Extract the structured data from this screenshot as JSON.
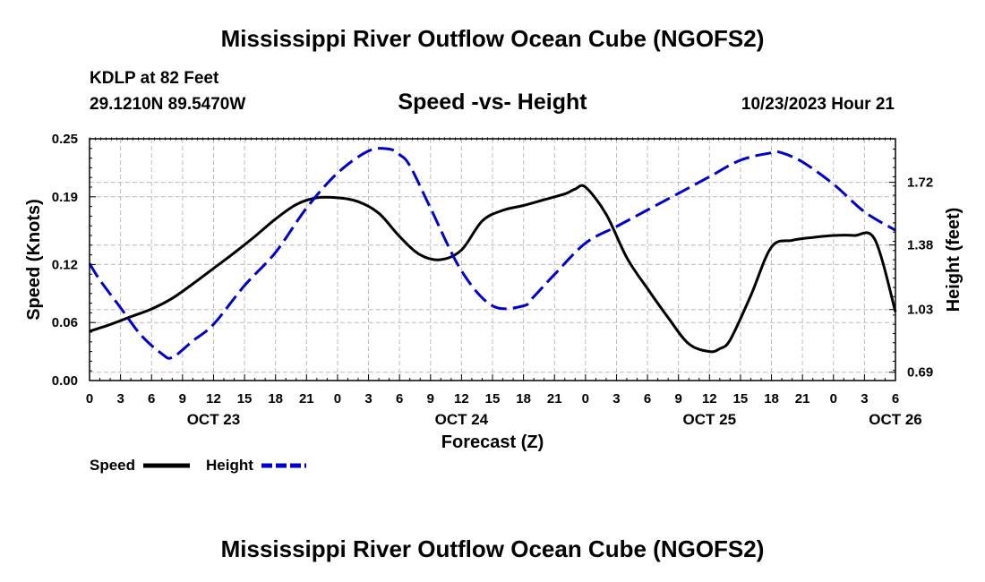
{
  "page": {
    "title_top": "Mississippi River Outflow Ocean Cube (NGOFS2)",
    "title_bottom": "Mississippi River Outflow Ocean Cube (NGOFS2)",
    "station": "KDLP at 82 Feet",
    "coordinates": "29.1210N  89.5470W",
    "subtitle": "Speed -vs- Height",
    "timestamp": "10/23/2023 Hour 21"
  },
  "chart_data": {
    "type": "line",
    "title": "Speed -vs- Height",
    "xlabel": "Forecast (Z)",
    "ylabel": "Speed (Knots)",
    "y2label": "Height (feet)",
    "x_unit": "hours since 10/23/2023 00Z",
    "xlim": [
      0,
      78
    ],
    "ylim": [
      0,
      0.25
    ],
    "y2lim": [
      0.645,
      1.956
    ],
    "x_ticks": [
      0,
      3,
      6,
      9,
      12,
      15,
      18,
      21,
      24,
      27,
      30,
      33,
      36,
      39,
      42,
      45,
      48,
      51,
      54,
      57,
      60,
      63,
      66,
      69,
      72,
      75,
      78
    ],
    "x_tick_labels": [
      "0",
      "3",
      "6",
      "9",
      "12",
      "15",
      "18",
      "21",
      "0",
      "3",
      "6",
      "9",
      "12",
      "15",
      "18",
      "21",
      "0",
      "3",
      "6",
      "9",
      "12",
      "15",
      "18",
      "21",
      "0",
      "3",
      "6"
    ],
    "date_labels": [
      {
        "x": 12,
        "label": "OCT 23"
      },
      {
        "x": 36,
        "label": "OCT 24"
      },
      {
        "x": 60,
        "label": "OCT 25"
      },
      {
        "x": 78,
        "label": "OCT 26"
      }
    ],
    "y_ticks": [
      0.0,
      0.06,
      0.12,
      0.19,
      0.25
    ],
    "y_tick_labels": [
      "0.00",
      "0.06",
      "0.12",
      "0.19",
      "0.25"
    ],
    "y2_ticks": [
      0.69,
      1.03,
      1.38,
      1.72
    ],
    "y2_tick_labels": [
      "0.69",
      "1.03",
      "1.38",
      "1.72"
    ],
    "grid": true,
    "legend": "bottom-left",
    "series": [
      {
        "name": "Speed",
        "axis": "left",
        "color": "#000000",
        "style": "solid",
        "x": [
          0,
          2,
          4,
          6,
          8,
          10,
          12,
          14,
          16,
          18,
          20,
          22,
          24,
          26,
          28,
          30,
          32,
          34,
          36,
          38,
          40,
          42,
          44,
          46,
          47,
          48,
          50,
          52,
          54,
          56,
          58,
          60,
          61,
          62,
          64,
          66,
          68,
          70,
          72,
          74,
          76,
          78
        ],
        "values": [
          0.051,
          0.058,
          0.066,
          0.074,
          0.085,
          0.1,
          0.116,
          0.132,
          0.149,
          0.167,
          0.182,
          0.189,
          0.189,
          0.185,
          0.173,
          0.149,
          0.13,
          0.125,
          0.135,
          0.165,
          0.176,
          0.181,
          0.187,
          0.193,
          0.198,
          0.2,
          0.172,
          0.127,
          0.095,
          0.065,
          0.038,
          0.03,
          0.033,
          0.042,
          0.088,
          0.138,
          0.145,
          0.148,
          0.15,
          0.15,
          0.146,
          0.071
        ]
      },
      {
        "name": "Height",
        "axis": "right",
        "color": "#0000cc",
        "style": "dashed",
        "x": [
          0,
          1,
          3,
          5,
          7,
          8,
          10,
          12,
          15,
          18,
          21,
          24,
          27,
          29,
          30,
          31,
          33,
          36,
          39,
          42,
          43,
          45,
          48,
          51,
          54,
          57,
          60,
          63,
          66,
          67,
          69,
          72,
          75,
          78
        ],
        "values": [
          1.28,
          1.19,
          1.04,
          0.89,
          0.79,
          0.77,
          0.86,
          0.95,
          1.16,
          1.34,
          1.58,
          1.77,
          1.89,
          1.9,
          1.87,
          1.81,
          1.58,
          1.24,
          1.05,
          1.05,
          1.1,
          1.22,
          1.39,
          1.48,
          1.57,
          1.66,
          1.75,
          1.84,
          1.88,
          1.88,
          1.83,
          1.71,
          1.56,
          1.46
        ]
      }
    ]
  },
  "legend": {
    "speed_label": "Speed",
    "height_label": "Height"
  }
}
